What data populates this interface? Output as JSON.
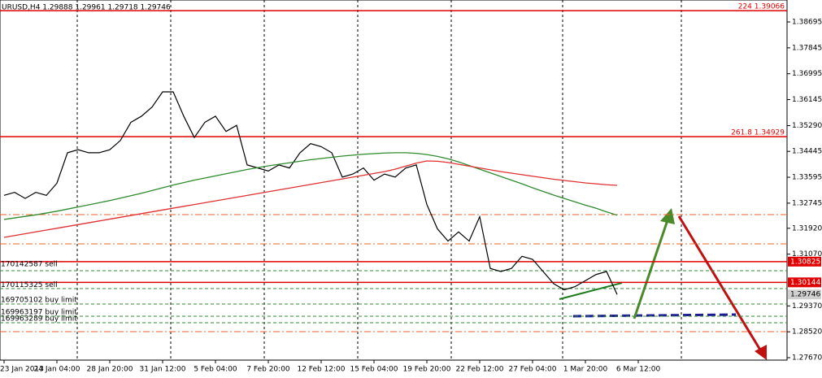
{
  "chart_data": {
    "type": "line",
    "title": "URUSD,H4  1.29888 1.29961 1.29718 1.29746",
    "categories": [
      "23 Jan 2013",
      null,
      null,
      null,
      null,
      "24 Jan 04:00",
      null,
      null,
      null,
      null,
      "28 Jan 20:00",
      null,
      null,
      null,
      null,
      "31 Jan 12:00",
      null,
      null,
      null,
      null,
      "5 Feb 04:00",
      null,
      null,
      null,
      null,
      "7 Feb 20:00",
      null,
      null,
      null,
      null,
      "12 Feb 12:00",
      null,
      null,
      null,
      null,
      "15 Feb 04:00",
      null,
      null,
      null,
      null,
      "19 Feb 20:00",
      null,
      null,
      null,
      null,
      "22 Feb 12:00",
      null,
      null,
      null,
      null,
      "27 Feb 04:00",
      null,
      null,
      null,
      null,
      "1 Mar 20:00",
      null,
      null,
      null,
      null,
      "6 Mar 12:00"
    ],
    "series": [
      {
        "color": "#000000",
        "values": [
          1.33,
          1.331,
          1.329,
          1.331,
          1.33,
          1.334,
          1.344,
          1.345,
          1.344,
          1.344,
          1.345,
          1.348,
          1.354,
          1.356,
          1.359,
          1.364,
          1.364,
          1.356,
          1.349,
          1.354,
          1.356,
          1.351,
          1.353,
          1.34,
          1.339,
          1.338,
          1.34,
          1.339,
          1.344,
          1.347,
          1.346,
          1.344,
          1.336,
          1.337,
          1.339,
          1.335,
          1.337,
          1.336,
          1.339,
          1.34,
          1.327,
          1.319,
          1.315,
          1.318,
          1.315,
          1.323,
          1.306,
          1.305,
          1.306,
          1.31,
          1.309,
          1.305,
          1.301,
          1.299,
          1.3,
          1.302,
          1.304,
          1.305,
          1.29746,
          null,
          null
        ]
      },
      {
        "color": "#2e8b2e",
        "values": [
          1.3221,
          1.3226,
          1.3231,
          1.3236,
          1.3242,
          1.3248,
          1.3255,
          1.3262,
          1.3269,
          1.3276,
          1.3283,
          1.3291,
          1.3299,
          1.3307,
          1.3316,
          1.3325,
          1.3334,
          1.3342,
          1.335,
          1.3357,
          1.3364,
          1.3371,
          1.3378,
          1.3385,
          1.3391,
          1.3397,
          1.3402,
          1.3407,
          1.3412,
          1.3417,
          1.3421,
          1.3425,
          1.3429,
          1.3432,
          1.3435,
          1.3437,
          1.3439,
          1.344,
          1.344,
          1.3438,
          1.3434,
          1.3428,
          1.342,
          1.341,
          1.3398,
          1.3386,
          1.3374,
          1.3362,
          1.335,
          1.3338,
          1.3325,
          1.3313,
          1.3301,
          1.329,
          1.3279,
          1.3268,
          1.3258,
          1.3246,
          1.3235,
          null,
          null
        ]
      },
      {
        "color": "#e03030",
        "values": [
          1.3162,
          1.3168,
          1.3174,
          1.318,
          1.3186,
          1.3192,
          1.3198,
          1.3204,
          1.321,
          1.3216,
          1.3222,
          1.3228,
          1.3234,
          1.324,
          1.3246,
          1.3252,
          1.3258,
          1.3264,
          1.327,
          1.3276,
          1.3282,
          1.3288,
          1.3294,
          1.33,
          1.3306,
          1.3312,
          1.3318,
          1.3324,
          1.333,
          1.3336,
          1.3342,
          1.3348,
          1.3354,
          1.336,
          1.3366,
          1.3372,
          1.3378,
          1.3386,
          1.3396,
          1.3406,
          1.3413,
          1.3412,
          1.3408,
          1.3402,
          1.3396,
          1.339,
          1.3384,
          1.3378,
          1.3373,
          1.3368,
          1.3363,
          1.3358,
          1.3353,
          1.3349,
          1.3345,
          1.3341,
          1.3338,
          1.3335,
          1.3333,
          null,
          null
        ]
      }
    ],
    "ylim": [
      1.2759,
      1.39416
    ],
    "yticks": [
      1.38695,
      1.37845,
      1.36995,
      1.36145,
      {
        "value": 1.3529,
        "label": "1.35290"
      },
      1.34445,
      1.33595,
      1.32745,
      {
        "value": 1.3192,
        "label": "1.31920"
      },
      {
        "value": 1.3107,
        "label": "1.31070"
      },
      {
        "value": 1.2937,
        "label": "1.29370"
      },
      {
        "value": 1.2852,
        "label": "1.28520"
      },
      {
        "value": 1.2767,
        "label": "1.27670"
      }
    ],
    "levels": [
      {
        "value": 1.39066,
        "label": "224 1.39066",
        "color": "#e00000",
        "style": "solid",
        "side": "right"
      },
      {
        "value": 1.34929,
        "label": "261.8 1.34929",
        "color": "#e00000",
        "style": "solid",
        "side": "right"
      },
      {
        "value": 1.30825,
        "label": "170142587 sell",
        "color": "#e00000",
        "style": "solid",
        "side": "left",
        "tag": true
      },
      {
        "value": 1.30144,
        "label": "170115325 sell",
        "color": "#e00000",
        "style": "solid",
        "side": "left",
        "tag": true
      },
      {
        "value": 1.29432,
        "label": "169705102 buy limit",
        "color": "#2e8b2e",
        "style": "dash",
        "side": "left"
      },
      {
        "value": 1.29031,
        "label": "169963197 buy limit",
        "color": "#2e8b2e",
        "style": "dash",
        "side": "left"
      },
      {
        "value": 1.28818,
        "label": "169963289 buy limit",
        "color": "#2e8b2e",
        "style": "dash",
        "side": "left"
      },
      {
        "value": 1.32369,
        "color": "#f06020",
        "style": "dashdot"
      },
      {
        "value": 1.31408,
        "color": "#f06020",
        "style": "dashdot"
      },
      {
        "value": 1.30527,
        "color": "#2e8b2e",
        "style": "dash"
      },
      {
        "value": 1.29939,
        "color": "#2e8b2e",
        "style": "dash"
      },
      {
        "value": 1.28524,
        "color": "#f06020",
        "style": "dashdot"
      }
    ]
  }
}
